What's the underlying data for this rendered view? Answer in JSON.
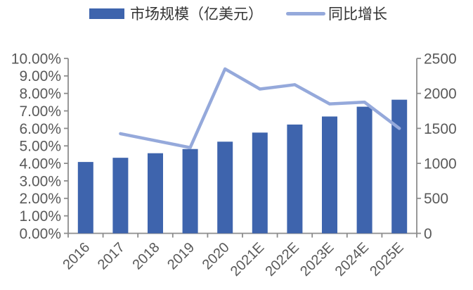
{
  "chart_data": {
    "type": "combo",
    "title": "",
    "categories": [
      "2016",
      "2017",
      "2018",
      "2019",
      "2020",
      "2021E",
      "2022E",
      "2023E",
      "2024E",
      "2025E"
    ],
    "series": [
      {
        "name": "市场规模（亿美元）",
        "type": "bar",
        "axis": "right",
        "color": "#3E64AD",
        "values": [
          1020,
          1080,
          1145,
          1205,
          1310,
          1440,
          1555,
          1670,
          1810,
          1910
        ]
      },
      {
        "name": "同比增长",
        "type": "line",
        "axis": "left",
        "color": "#95A9DB",
        "values": [
          null,
          5.7,
          5.3,
          4.9,
          9.4,
          8.25,
          8.5,
          7.4,
          7.5,
          6.0
        ]
      }
    ],
    "left_axis": {
      "min": 0,
      "max": 10,
      "step": 1,
      "format": "percent",
      "tick_labels": [
        "10.00%",
        "9.00%",
        "8.00%",
        "7.00%",
        "6.00%",
        "5.00%",
        "4.00%",
        "3.00%",
        "2.00%",
        "1.00%",
        "0.00%"
      ]
    },
    "right_axis": {
      "min": 0,
      "max": 2500,
      "step": 500,
      "tick_labels": [
        "2500",
        "2000",
        "1500",
        "1000",
        "500",
        "0"
      ]
    },
    "x_axis": {
      "label_rotation_deg": 45
    },
    "legend_position": "top",
    "grid": "off",
    "styles": {
      "axis_color": "#8C8C8C",
      "tick_label_color": "#595959",
      "legend_text_color": "#333333",
      "background": "#FFFFFF"
    }
  }
}
